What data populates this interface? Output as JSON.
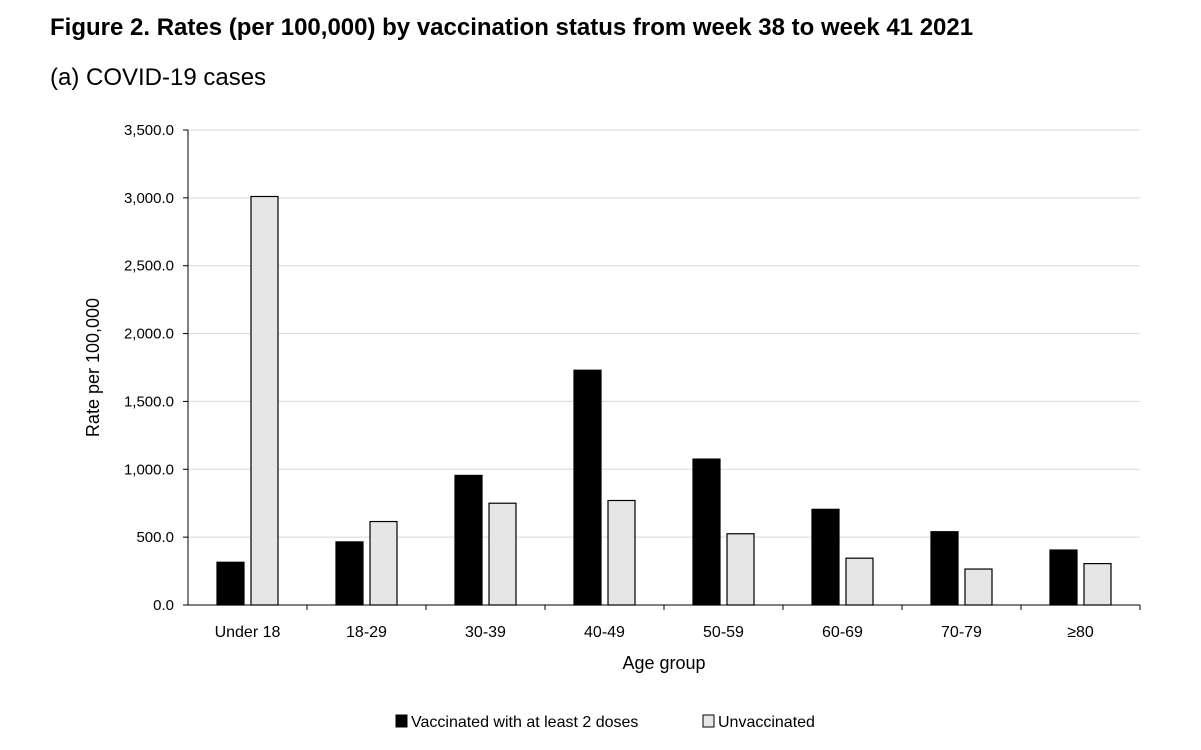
{
  "header": {
    "title": "Figure 2. Rates (per 100,000) by vaccination status from week 38 to week 41 2021",
    "subtitle": "(a) COVID-19 cases"
  },
  "chart_data": {
    "type": "bar",
    "title": "Figure 2. Rates (per 100,000) by vaccination status from week 38 to week 41 2021",
    "subtitle": "(a) COVID-19 cases",
    "xlabel": "Age group",
    "ylabel": "Rate per 100,000",
    "categories": [
      "Under 18",
      "18-29",
      "30-39",
      "40-49",
      "50-59",
      "60-69",
      "70-79",
      "≥80"
    ],
    "series": [
      {
        "name": "Vaccinated with at least 2 doses",
        "color": "#000000",
        "values": [
          315,
          465,
          955,
          1730,
          1075,
          705,
          540,
          405
        ]
      },
      {
        "name": "Unvaccinated",
        "color": "#e6e6e6",
        "values": [
          3010,
          615,
          750,
          770,
          525,
          345,
          265,
          305
        ]
      }
    ],
    "ylim": [
      0,
      3500
    ],
    "yticks": [
      "0.0",
      "500.0",
      "1,000.0",
      "1,500.0",
      "2,000.0",
      "2,500.0",
      "3,000.0",
      "3,500.0"
    ],
    "grid": true,
    "legend_position": "bottom"
  }
}
